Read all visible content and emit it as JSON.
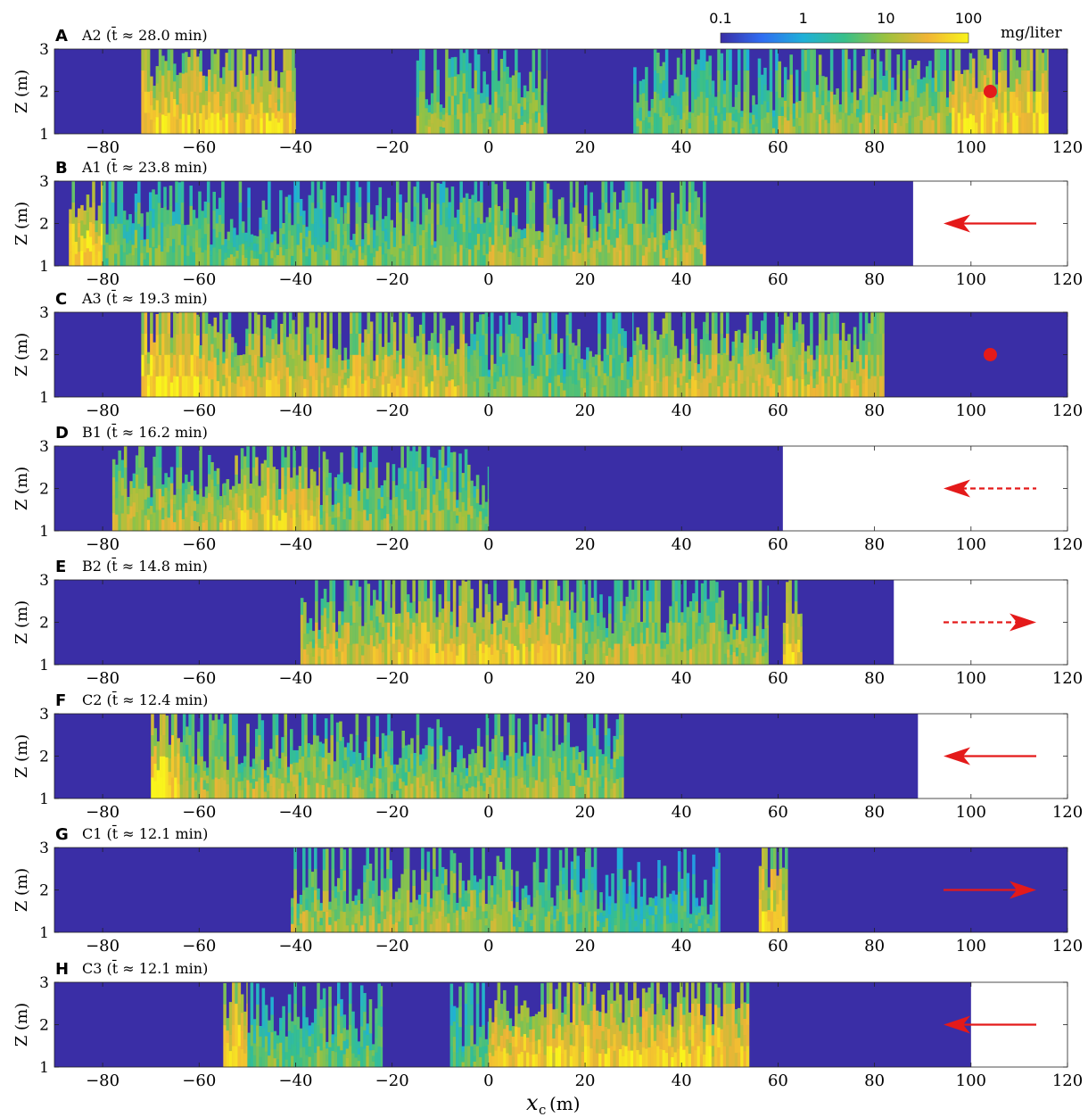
{
  "figure": {
    "xlabel": "x",
    "xlabel_sub": "c",
    "xlabel_unit": "(m)",
    "ylabel": "Z (m)",
    "colorbar": {
      "ticks": [
        "0.1",
        "1",
        "10",
        "100"
      ],
      "unit": "mg/liter",
      "scale": "log",
      "range": [
        0.1,
        100
      ],
      "colors": [
        "#3a2ea6",
        "#2f6df2",
        "#1fb0d8",
        "#38c08a",
        "#9cc23e",
        "#f1b535",
        "#f9f41c"
      ]
    },
    "background_color": "#3a2ea6"
  },
  "chart_data": [
    {
      "type": "heatmap",
      "letter": "A",
      "label": "A2",
      "tbar": "28.0",
      "xlim": [
        -90,
        120
      ],
      "ylim": [
        1,
        3
      ],
      "xticks": [
        -80,
        -60,
        -40,
        -20,
        0,
        20,
        40,
        60,
        80,
        100,
        120
      ],
      "yticks": [
        1,
        2,
        3
      ],
      "data_extent_x": [
        -90,
        120
      ],
      "plume_segments": [
        {
          "x": [
            -72,
            -40
          ],
          "intensity": 0.85
        },
        {
          "x": [
            -15,
            12
          ],
          "intensity": 0.55
        },
        {
          "x": [
            30,
            60
          ],
          "intensity": 0.45
        },
        {
          "x": [
            60,
            96
          ],
          "intensity": 0.6
        },
        {
          "x": [
            96,
            116
          ],
          "intensity": 0.9
        }
      ],
      "marker": {
        "type": "dot",
        "x": 104,
        "z": 2
      },
      "arrow": null
    },
    {
      "type": "heatmap",
      "letter": "B",
      "label": "A1",
      "tbar": "23.8",
      "xlim": [
        -90,
        120
      ],
      "ylim": [
        1,
        3
      ],
      "xticks": [
        -80,
        -60,
        -40,
        -20,
        0,
        20,
        40,
        60,
        80,
        100,
        120
      ],
      "yticks": [
        1,
        2,
        3
      ],
      "data_extent_x": [
        -90,
        88
      ],
      "plume_segments": [
        {
          "x": [
            -87,
            -80
          ],
          "intensity": 0.95
        },
        {
          "x": [
            -80,
            -30
          ],
          "intensity": 0.45
        },
        {
          "x": [
            -30,
            0
          ],
          "intensity": 0.5
        },
        {
          "x": [
            0,
            45
          ],
          "intensity": 0.6
        }
      ],
      "marker": null,
      "arrow": {
        "direction": "left",
        "style": "solid",
        "z": 2
      }
    },
    {
      "type": "heatmap",
      "letter": "C",
      "label": "A3",
      "tbar": "19.3",
      "xlim": [
        -90,
        120
      ],
      "ylim": [
        1,
        3
      ],
      "xticks": [
        -80,
        -60,
        -40,
        -20,
        0,
        20,
        40,
        60,
        80,
        100,
        120
      ],
      "yticks": [
        1,
        2,
        3
      ],
      "data_extent_x": [
        -90,
        120
      ],
      "plume_segments": [
        {
          "x": [
            -72,
            -60
          ],
          "intensity": 0.95
        },
        {
          "x": [
            -60,
            -5
          ],
          "intensity": 0.75
        },
        {
          "x": [
            -5,
            30
          ],
          "intensity": 0.5
        },
        {
          "x": [
            30,
            82
          ],
          "intensity": 0.7
        }
      ],
      "marker": {
        "type": "dot",
        "x": 104,
        "z": 2
      },
      "arrow": null
    },
    {
      "type": "heatmap",
      "letter": "D",
      "label": "B1",
      "tbar": "16.2",
      "xlim": [
        -90,
        120
      ],
      "ylim": [
        1,
        3
      ],
      "xticks": [
        -80,
        -60,
        -40,
        -20,
        0,
        20,
        40,
        60,
        80,
        100,
        120
      ],
      "yticks": [
        1,
        2,
        3
      ],
      "data_extent_x": [
        -90,
        61
      ],
      "plume_segments": [
        {
          "x": [
            -78,
            -55
          ],
          "intensity": 0.65
        },
        {
          "x": [
            -55,
            -35
          ],
          "intensity": 0.8
        },
        {
          "x": [
            -35,
            0
          ],
          "intensity": 0.55
        }
      ],
      "marker": null,
      "arrow": {
        "direction": "left",
        "style": "dashed",
        "z": 2
      }
    },
    {
      "type": "heatmap",
      "letter": "E",
      "label": "B2",
      "tbar": "14.8",
      "xlim": [
        -90,
        120
      ],
      "ylim": [
        1,
        3
      ],
      "xticks": [
        -80,
        -60,
        -40,
        -20,
        0,
        20,
        40,
        60,
        80,
        100,
        120
      ],
      "yticks": [
        1,
        2,
        3
      ],
      "data_extent_x": [
        -90,
        84
      ],
      "plume_segments": [
        {
          "x": [
            -39,
            -20
          ],
          "intensity": 0.7
        },
        {
          "x": [
            -20,
            17
          ],
          "intensity": 0.8
        },
        {
          "x": [
            17,
            58
          ],
          "intensity": 0.6
        },
        {
          "x": [
            61,
            65
          ],
          "intensity": 0.85
        }
      ],
      "marker": null,
      "arrow": {
        "direction": "right",
        "style": "dashed",
        "z": 2
      }
    },
    {
      "type": "heatmap",
      "letter": "F",
      "label": "C2",
      "tbar": "12.4",
      "xlim": [
        -90,
        120
      ],
      "ylim": [
        1,
        3
      ],
      "xticks": [
        -80,
        -60,
        -40,
        -20,
        0,
        20,
        40,
        60,
        80,
        100,
        120
      ],
      "yticks": [
        1,
        2,
        3
      ],
      "data_extent_x": [
        -90,
        89
      ],
      "plume_segments": [
        {
          "x": [
            -70,
            -64
          ],
          "intensity": 0.95
        },
        {
          "x": [
            -64,
            -30
          ],
          "intensity": 0.6
        },
        {
          "x": [
            -30,
            28
          ],
          "intensity": 0.55
        }
      ],
      "marker": null,
      "arrow": {
        "direction": "left",
        "style": "solid",
        "z": 2
      }
    },
    {
      "type": "heatmap",
      "letter": "G",
      "label": "C1",
      "tbar": "12.1",
      "xlim": [
        -90,
        120
      ],
      "ylim": [
        1,
        3
      ],
      "xticks": [
        -80,
        -60,
        -40,
        -20,
        0,
        20,
        40,
        60,
        80,
        100,
        120
      ],
      "yticks": [
        1,
        2,
        3
      ],
      "data_extent_x": [
        -90,
        120
      ],
      "plume_segments": [
        {
          "x": [
            -41,
            5
          ],
          "intensity": 0.6
        },
        {
          "x": [
            5,
            23
          ],
          "intensity": 0.45
        },
        {
          "x": [
            23,
            48
          ],
          "intensity": 0.35
        },
        {
          "x": [
            56,
            62
          ],
          "intensity": 0.85
        }
      ],
      "marker": null,
      "arrow": {
        "direction": "right",
        "style": "solid",
        "z": 2
      }
    },
    {
      "type": "heatmap",
      "letter": "H",
      "label": "C3",
      "tbar": "12.1",
      "xlim": [
        -90,
        120
      ],
      "ylim": [
        1,
        3
      ],
      "xticks": [
        -80,
        -60,
        -40,
        -20,
        0,
        20,
        40,
        60,
        80,
        100,
        120
      ],
      "yticks": [
        1,
        2,
        3
      ],
      "data_extent_x": [
        -90,
        100
      ],
      "plume_segments": [
        {
          "x": [
            -55,
            -50
          ],
          "intensity": 0.95
        },
        {
          "x": [
            -50,
            -22
          ],
          "intensity": 0.45
        },
        {
          "x": [
            -8,
            0
          ],
          "intensity": 0.4
        },
        {
          "x": [
            0,
            54
          ],
          "intensity": 0.85
        }
      ],
      "marker": null,
      "arrow": {
        "direction": "left",
        "style": "solid",
        "z": 2
      }
    }
  ]
}
